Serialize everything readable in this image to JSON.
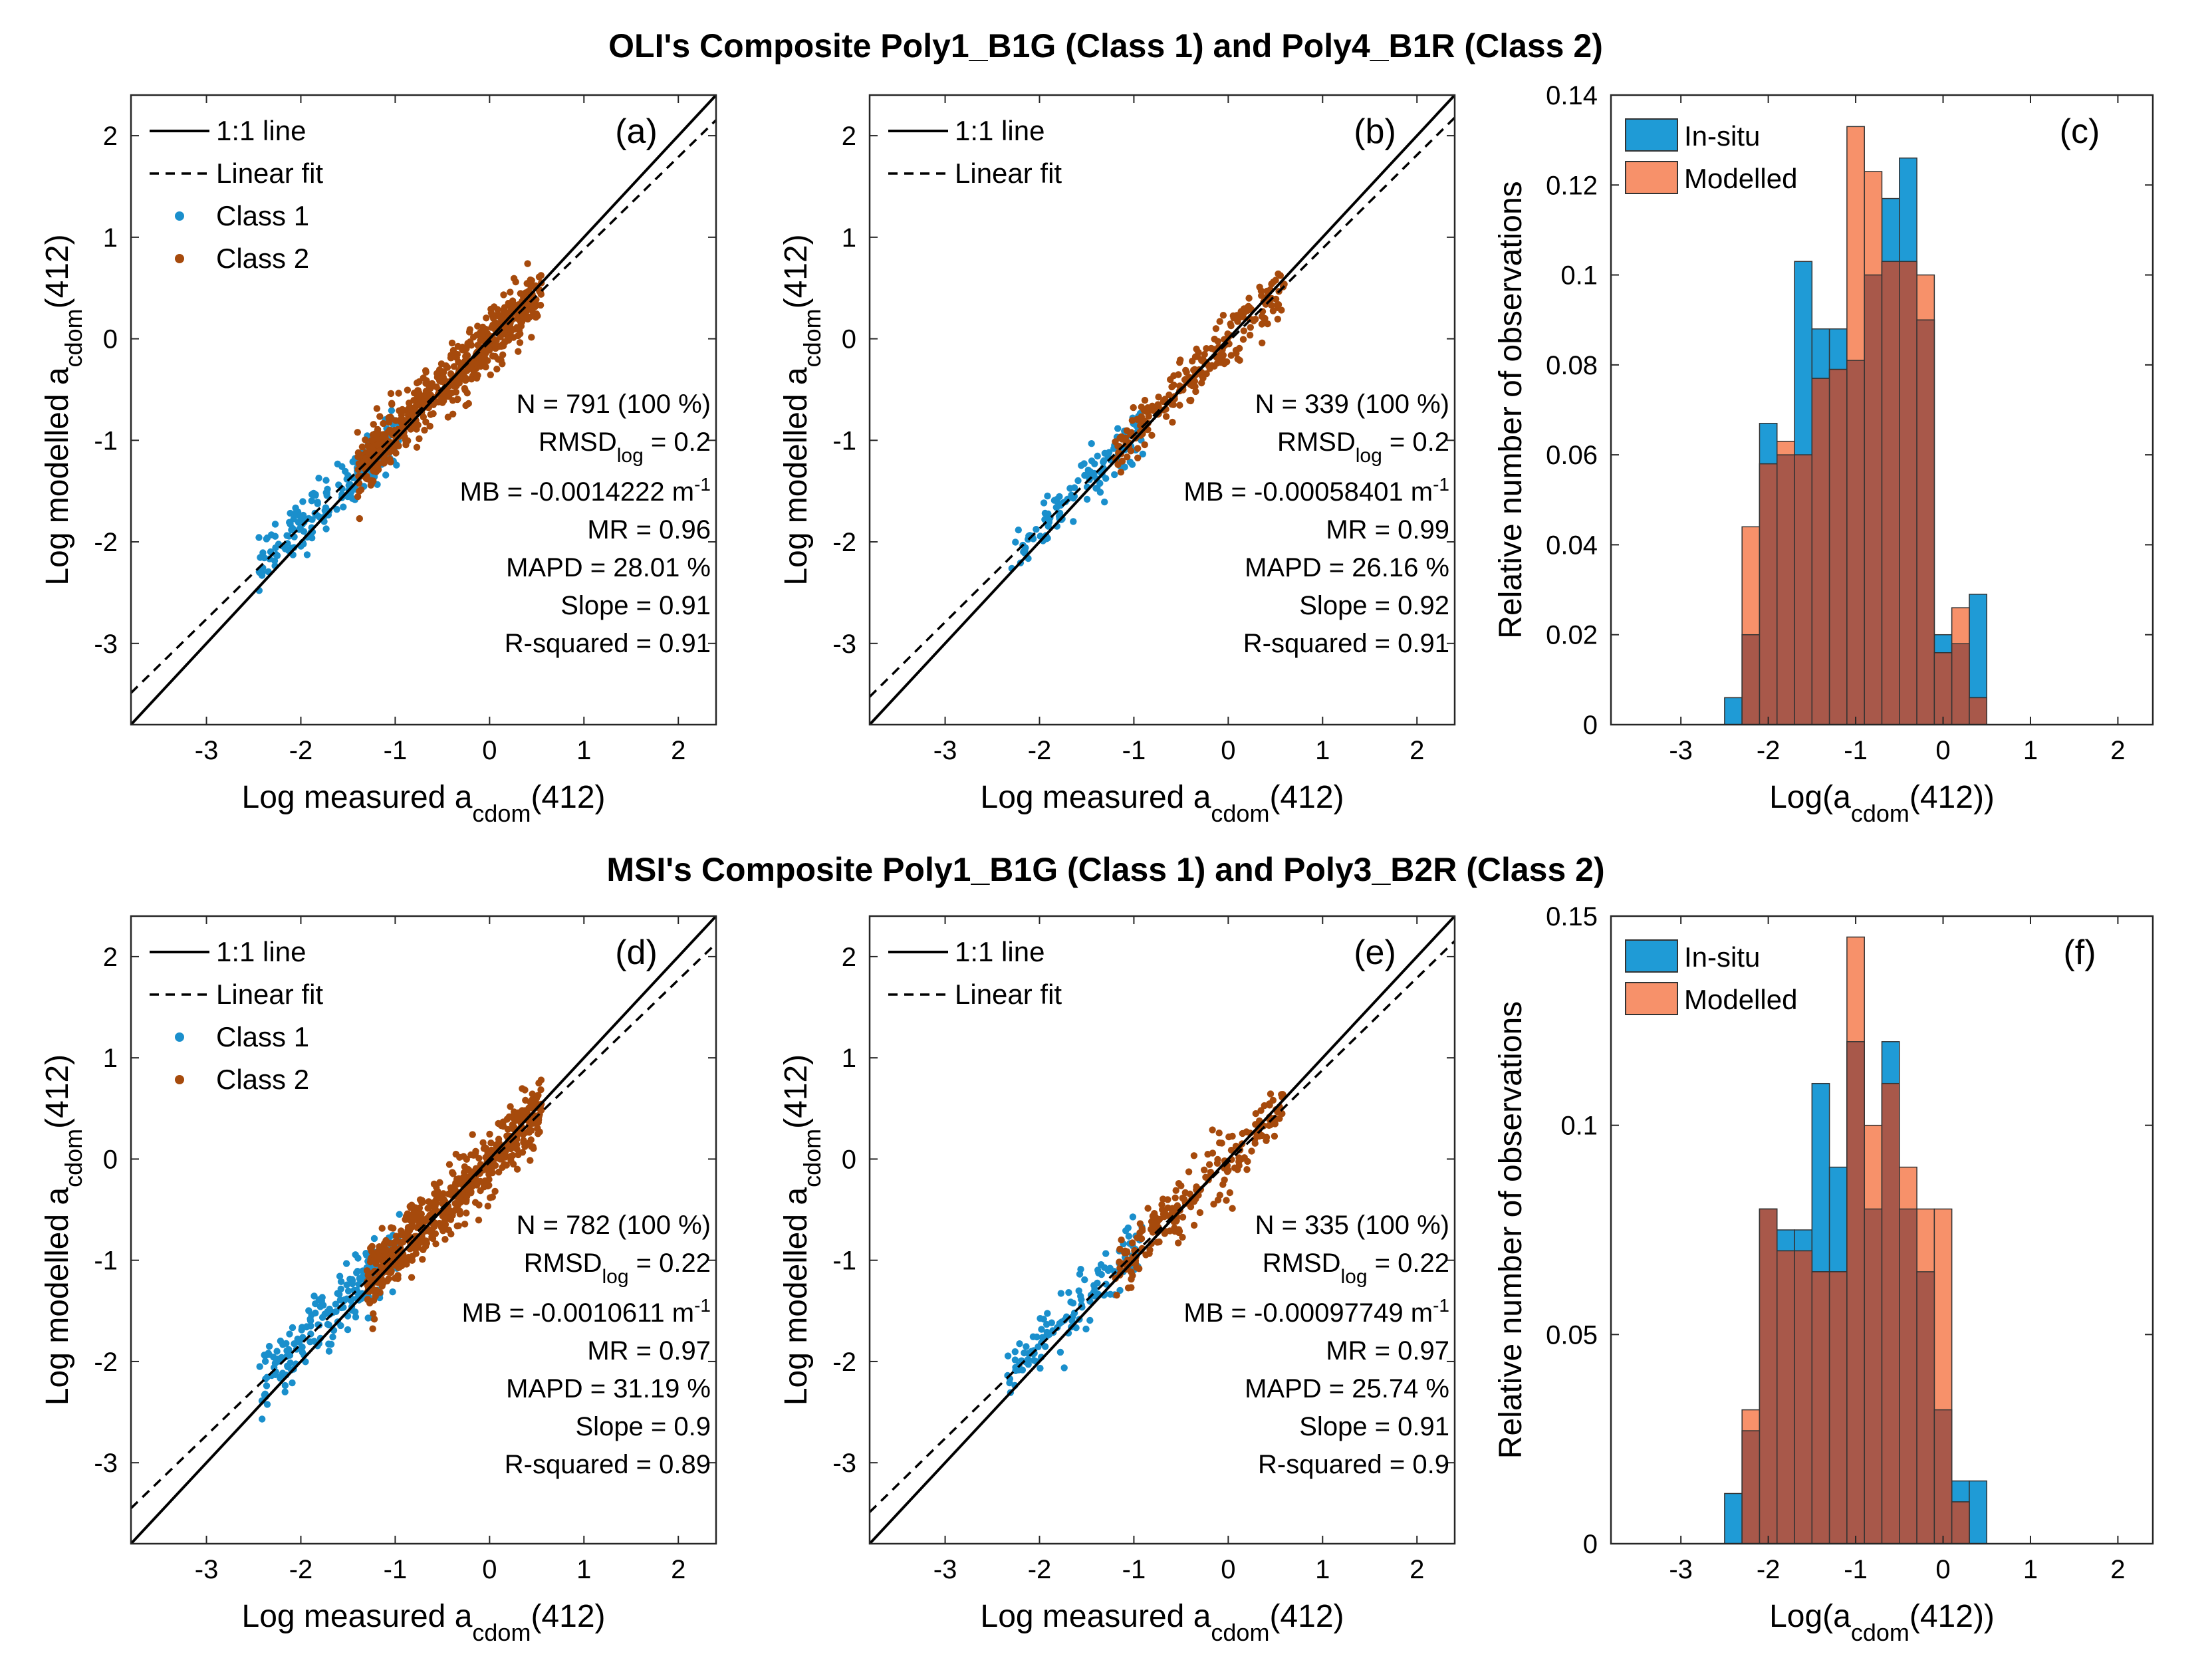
{
  "figure": {
    "titles": [
      "OLI's Composite Poly1_B1G (Class 1) and Poly4_B1R (Class 2)",
      "MSI's Composite Poly1_B1G (Class 1) and Poly3_B2R (Class 2)"
    ]
  },
  "colors": {
    "class1": "#1a8fcc",
    "class2": "#a64a0c",
    "insitu": "#1f9bd6",
    "modelled": "#f7916a",
    "overlap": "#a8584a"
  },
  "labels": {
    "scatter_x_prefix": "Log measured a",
    "scatter_y_prefix": "Log modelled a",
    "acdom_sub": "cdom",
    "band": "(412)",
    "hist_y": "Relative number of observations",
    "hist_x_prefix": "Log(a",
    "hist_x_suffix": "(412))",
    "rmsd_prefix": "RMSD",
    "rmsd_sub": "log",
    "unit_prefix": "m",
    "unit_sup": "-1"
  },
  "chart_data": [
    {
      "id": "a",
      "type": "scatter",
      "panel_label": "(a)",
      "xlim": [
        -3.8,
        2.4
      ],
      "ylim": [
        -3.8,
        2.4
      ],
      "xticks": [
        "-3",
        "-2",
        "-1",
        "0",
        "1",
        "2"
      ],
      "yticks": [
        "2",
        "1",
        "0",
        "-1",
        "-2",
        "-3"
      ],
      "legend": [
        "1:1 line",
        "Linear fit",
        "Class 1",
        "Class 2"
      ],
      "fit": {
        "slope": 0.91,
        "intercept": -0.03
      },
      "class1_range": [
        -2.45,
        -0.95
      ],
      "class2_range": [
        -1.4,
        0.55
      ],
      "n_class1": 180,
      "n_class2": 611,
      "noise": 0.14,
      "stats": {
        "n": "N = 791 (100 %)",
        "rmsd": " = 0.2",
        "mb": "MB = -0.0014222 ",
        "mr": "MR = 0.96",
        "mapd": "MAPD = 28.01 %",
        "slope": "Slope = 0.91",
        "r2": "R-squared = 0.91"
      }
    },
    {
      "id": "b",
      "type": "scatter",
      "panel_label": "(b)",
      "xlim": [
        -3.8,
        2.4
      ],
      "ylim": [
        -3.8,
        2.4
      ],
      "xticks": [
        "-3",
        "-2",
        "-1",
        "0",
        "1",
        "2"
      ],
      "yticks": [
        "2",
        "1",
        "0",
        "-1",
        "-2",
        "-3"
      ],
      "legend": [
        "1:1 line",
        "Linear fit"
      ],
      "fit": {
        "slope": 0.92,
        "intercept": -0.03
      },
      "class1_range": [
        -2.3,
        -0.9
      ],
      "class2_range": [
        -1.2,
        0.6
      ],
      "n_class1": 120,
      "n_class2": 219,
      "noise": 0.13,
      "stats": {
        "n": "N = 339 (100 %)",
        "rmsd": " = 0.2",
        "mb": "MB = -0.00058401 ",
        "mr": "MR = 0.99",
        "mapd": "MAPD = 26.16 %",
        "slope": "Slope = 0.92",
        "r2": "R-squared = 0.91"
      }
    },
    {
      "id": "c",
      "type": "histogram",
      "panel_label": "(c)",
      "xlim": [
        -3.8,
        2.4
      ],
      "ylim": [
        0,
        0.14
      ],
      "xticks": [
        "-3",
        "-2",
        "-1",
        "0",
        "1",
        "2"
      ],
      "yticks": [
        "0",
        "0.02",
        "0.04",
        "0.06",
        "0.08",
        "0.1",
        "0.12",
        "0.14"
      ],
      "legend": [
        "In-situ",
        "Modelled"
      ],
      "bin_start": -2.5,
      "bin_width": 0.2,
      "insitu": [
        0.006,
        0.02,
        0.067,
        0.06,
        0.103,
        0.088,
        0.088,
        0.081,
        0.1,
        0.117,
        0.126,
        0.09,
        0.02,
        0.018,
        0.029
      ],
      "modelled": [
        0.0,
        0.044,
        0.058,
        0.063,
        0.06,
        0.077,
        0.079,
        0.133,
        0.123,
        0.103,
        0.103,
        0.1,
        0.016,
        0.026,
        0.006
      ]
    },
    {
      "id": "d",
      "type": "scatter",
      "panel_label": "(d)",
      "xlim": [
        -3.8,
        2.4
      ],
      "ylim": [
        -3.8,
        2.4
      ],
      "xticks": [
        "-3",
        "-2",
        "-1",
        "0",
        "1",
        "2"
      ],
      "yticks": [
        "2",
        "1",
        "0",
        "-1",
        "-2",
        "-3"
      ],
      "legend": [
        "1:1 line",
        "Linear fit",
        "Class 1",
        "Class 2"
      ],
      "fit": {
        "slope": 0.9,
        "intercept": -0.03
      },
      "class1_range": [
        -2.45,
        -0.95
      ],
      "class2_range": [
        -1.3,
        0.55
      ],
      "n_class1": 200,
      "n_class2": 582,
      "noise": 0.16,
      "stats": {
        "n": "N = 782 (100 %)",
        "rmsd": " = 0.22",
        "mb": "MB = -0.0010611 ",
        "mr": "MR = 0.97",
        "mapd": "MAPD = 31.19 %",
        "slope": "Slope = 0.9",
        "r2": "R-squared = 0.89"
      }
    },
    {
      "id": "e",
      "type": "scatter",
      "panel_label": "(e)",
      "xlim": [
        -3.8,
        2.4
      ],
      "ylim": [
        -3.8,
        2.4
      ],
      "xticks": [
        "-3",
        "-2",
        "-1",
        "0",
        "1",
        "2"
      ],
      "yticks": [
        "2",
        "1",
        "0",
        "-1",
        "-2",
        "-3"
      ],
      "legend": [
        "1:1 line",
        "Linear fit"
      ],
      "fit": {
        "slope": 0.91,
        "intercept": -0.03
      },
      "class1_range": [
        -2.35,
        -0.9
      ],
      "class2_range": [
        -1.2,
        0.6
      ],
      "n_class1": 130,
      "n_class2": 205,
      "noise": 0.15,
      "stats": {
        "n": "N = 335 (100 %)",
        "rmsd": " = 0.22",
        "mb": "MB = -0.00097749 ",
        "mr": "MR = 0.97",
        "mapd": "MAPD = 25.74 %",
        "slope": "Slope = 0.91",
        "r2": "R-squared = 0.9"
      }
    },
    {
      "id": "f",
      "type": "histogram",
      "panel_label": "(f)",
      "xlim": [
        -3.8,
        2.4
      ],
      "ylim": [
        0,
        0.15
      ],
      "xticks": [
        "-3",
        "-2",
        "-1",
        "0",
        "1",
        "2"
      ],
      "yticks": [
        "0",
        "0.05",
        "0.1",
        "0.15"
      ],
      "legend": [
        "In-situ",
        "Modelled"
      ],
      "bin_start": -2.5,
      "bin_width": 0.2,
      "insitu": [
        0.012,
        0.027,
        0.08,
        0.075,
        0.075,
        0.11,
        0.09,
        0.12,
        0.08,
        0.12,
        0.08,
        0.065,
        0.032,
        0.015,
        0.015
      ],
      "modelled": [
        0.0,
        0.032,
        0.08,
        0.07,
        0.07,
        0.065,
        0.065,
        0.145,
        0.1,
        0.11,
        0.09,
        0.08,
        0.08,
        0.01,
        0.0
      ]
    }
  ]
}
